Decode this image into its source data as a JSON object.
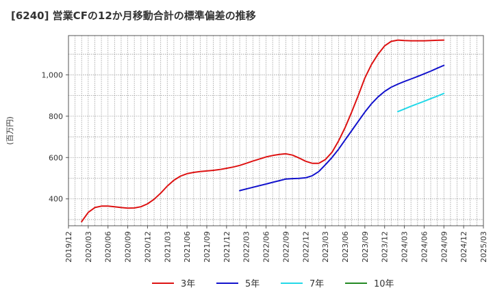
{
  "chart_data": {
    "type": "line",
    "title": "[6240]  営業CFの12か月移動合計の標準偏差の推移",
    "ylabel": "(百万円)",
    "xlabel": "",
    "ylim": [
      270,
      1190
    ],
    "yticks": [
      400,
      600,
      800,
      1000
    ],
    "ytick_labels": [
      "400",
      "600",
      "800",
      "1,000"
    ],
    "x_range": [
      "2019-12",
      "2025-03"
    ],
    "xticks": [
      "2019/12",
      "2020/03",
      "2020/06",
      "2020/09",
      "2020/12",
      "2021/03",
      "2021/06",
      "2021/09",
      "2021/12",
      "2022/03",
      "2022/06",
      "2022/09",
      "2022/12",
      "2023/03",
      "2023/06",
      "2023/09",
      "2023/12",
      "2024/03",
      "2024/06",
      "2024/09",
      "2024/12",
      "2025/03"
    ],
    "grid": true,
    "legend_position": "bottom",
    "series": [
      {
        "name": "3年",
        "color": "#dd1111",
        "x": [
          "2020-02",
          "2020-03",
          "2020-04",
          "2020-05",
          "2020-06",
          "2020-07",
          "2020-08",
          "2020-09",
          "2020-10",
          "2020-11",
          "2020-12",
          "2021-01",
          "2021-02",
          "2021-03",
          "2021-04",
          "2021-05",
          "2021-06",
          "2021-07",
          "2021-08",
          "2021-09",
          "2021-10",
          "2021-11",
          "2021-12",
          "2022-01",
          "2022-02",
          "2022-03",
          "2022-04",
          "2022-05",
          "2022-06",
          "2022-07",
          "2022-08",
          "2022-09",
          "2022-10",
          "2022-11",
          "2022-12",
          "2023-01",
          "2023-02",
          "2023-03",
          "2023-04",
          "2023-05",
          "2023-06",
          "2023-07",
          "2023-08",
          "2023-09",
          "2023-10",
          "2023-11",
          "2023-12",
          "2024-01",
          "2024-02",
          "2024-03",
          "2024-04",
          "2024-05",
          "2024-06",
          "2024-07",
          "2024-08",
          "2024-09"
        ],
        "values": [
          290,
          335,
          358,
          365,
          365,
          362,
          358,
          355,
          356,
          362,
          376,
          398,
          428,
          462,
          490,
          510,
          522,
          528,
          532,
          535,
          538,
          542,
          548,
          554,
          562,
          572,
          583,
          593,
          603,
          610,
          615,
          618,
          612,
          598,
          582,
          572,
          572,
          590,
          625,
          680,
          745,
          820,
          900,
          985,
          1050,
          1100,
          1140,
          1162,
          1168,
          1166,
          1165,
          1165,
          1165,
          1166,
          1167,
          1168
        ]
      },
      {
        "name": "5年",
        "color": "#1111cc",
        "x": [
          "2022-02",
          "2022-03",
          "2022-04",
          "2022-05",
          "2022-06",
          "2022-07",
          "2022-08",
          "2022-09",
          "2022-10",
          "2022-11",
          "2022-12",
          "2023-01",
          "2023-02",
          "2023-03",
          "2023-04",
          "2023-05",
          "2023-06",
          "2023-07",
          "2023-08",
          "2023-09",
          "2023-10",
          "2023-11",
          "2023-12",
          "2024-01",
          "2024-02",
          "2024-03",
          "2024-04",
          "2024-05",
          "2024-06",
          "2024-07",
          "2024-08",
          "2024-09"
        ],
        "values": [
          440,
          448,
          456,
          464,
          472,
          480,
          488,
          496,
          498,
          499,
          502,
          512,
          532,
          565,
          600,
          640,
          685,
          730,
          775,
          820,
          860,
          893,
          920,
          940,
          955,
          968,
          980,
          992,
          1005,
          1018,
          1032,
          1046
        ]
      },
      {
        "name": "7年",
        "color": "#22d8e8",
        "x": [
          "2024-02",
          "2024-03",
          "2024-04",
          "2024-05",
          "2024-06",
          "2024-07",
          "2024-08",
          "2024-09"
        ],
        "values": [
          822,
          835,
          848,
          860,
          872,
          885,
          897,
          910
        ]
      },
      {
        "name": "10年",
        "color": "#228822",
        "x": [],
        "values": []
      }
    ]
  }
}
